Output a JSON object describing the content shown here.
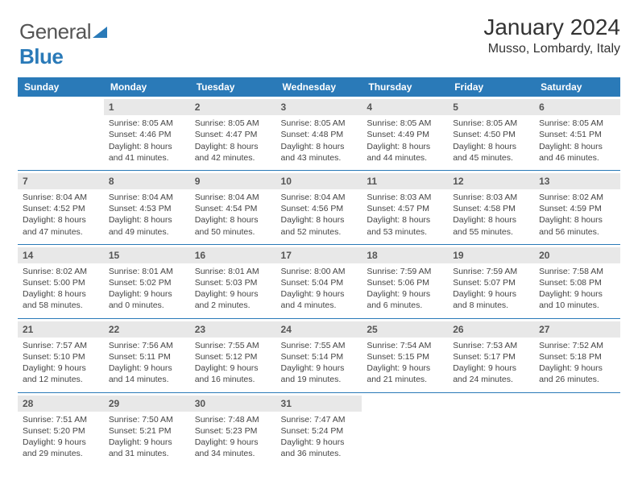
{
  "logo": {
    "word1": "General",
    "word2": "Blue"
  },
  "title": "January 2024",
  "location": "Musso, Lombardy, Italy",
  "colors": {
    "accent": "#2a7ab8",
    "dayHeaderBg": "#e8e8e8",
    "text": "#444"
  },
  "dayHeaders": [
    "Sunday",
    "Monday",
    "Tuesday",
    "Wednesday",
    "Thursday",
    "Friday",
    "Saturday"
  ],
  "weeks": [
    [
      {
        "n": "",
        "empty": true
      },
      {
        "n": "1",
        "sr": "8:05 AM",
        "ss": "4:46 PM",
        "dl": "8 hours and 41 minutes."
      },
      {
        "n": "2",
        "sr": "8:05 AM",
        "ss": "4:47 PM",
        "dl": "8 hours and 42 minutes."
      },
      {
        "n": "3",
        "sr": "8:05 AM",
        "ss": "4:48 PM",
        "dl": "8 hours and 43 minutes."
      },
      {
        "n": "4",
        "sr": "8:05 AM",
        "ss": "4:49 PM",
        "dl": "8 hours and 44 minutes."
      },
      {
        "n": "5",
        "sr": "8:05 AM",
        "ss": "4:50 PM",
        "dl": "8 hours and 45 minutes."
      },
      {
        "n": "6",
        "sr": "8:05 AM",
        "ss": "4:51 PM",
        "dl": "8 hours and 46 minutes."
      }
    ],
    [
      {
        "n": "7",
        "sr": "8:04 AM",
        "ss": "4:52 PM",
        "dl": "8 hours and 47 minutes."
      },
      {
        "n": "8",
        "sr": "8:04 AM",
        "ss": "4:53 PM",
        "dl": "8 hours and 49 minutes."
      },
      {
        "n": "9",
        "sr": "8:04 AM",
        "ss": "4:54 PM",
        "dl": "8 hours and 50 minutes."
      },
      {
        "n": "10",
        "sr": "8:04 AM",
        "ss": "4:56 PM",
        "dl": "8 hours and 52 minutes."
      },
      {
        "n": "11",
        "sr": "8:03 AM",
        "ss": "4:57 PM",
        "dl": "8 hours and 53 minutes."
      },
      {
        "n": "12",
        "sr": "8:03 AM",
        "ss": "4:58 PM",
        "dl": "8 hours and 55 minutes."
      },
      {
        "n": "13",
        "sr": "8:02 AM",
        "ss": "4:59 PM",
        "dl": "8 hours and 56 minutes."
      }
    ],
    [
      {
        "n": "14",
        "sr": "8:02 AM",
        "ss": "5:00 PM",
        "dl": "8 hours and 58 minutes."
      },
      {
        "n": "15",
        "sr": "8:01 AM",
        "ss": "5:02 PM",
        "dl": "9 hours and 0 minutes."
      },
      {
        "n": "16",
        "sr": "8:01 AM",
        "ss": "5:03 PM",
        "dl": "9 hours and 2 minutes."
      },
      {
        "n": "17",
        "sr": "8:00 AM",
        "ss": "5:04 PM",
        "dl": "9 hours and 4 minutes."
      },
      {
        "n": "18",
        "sr": "7:59 AM",
        "ss": "5:06 PM",
        "dl": "9 hours and 6 minutes."
      },
      {
        "n": "19",
        "sr": "7:59 AM",
        "ss": "5:07 PM",
        "dl": "9 hours and 8 minutes."
      },
      {
        "n": "20",
        "sr": "7:58 AM",
        "ss": "5:08 PM",
        "dl": "9 hours and 10 minutes."
      }
    ],
    [
      {
        "n": "21",
        "sr": "7:57 AM",
        "ss": "5:10 PM",
        "dl": "9 hours and 12 minutes."
      },
      {
        "n": "22",
        "sr": "7:56 AM",
        "ss": "5:11 PM",
        "dl": "9 hours and 14 minutes."
      },
      {
        "n": "23",
        "sr": "7:55 AM",
        "ss": "5:12 PM",
        "dl": "9 hours and 16 minutes."
      },
      {
        "n": "24",
        "sr": "7:55 AM",
        "ss": "5:14 PM",
        "dl": "9 hours and 19 minutes."
      },
      {
        "n": "25",
        "sr": "7:54 AM",
        "ss": "5:15 PM",
        "dl": "9 hours and 21 minutes."
      },
      {
        "n": "26",
        "sr": "7:53 AM",
        "ss": "5:17 PM",
        "dl": "9 hours and 24 minutes."
      },
      {
        "n": "27",
        "sr": "7:52 AM",
        "ss": "5:18 PM",
        "dl": "9 hours and 26 minutes."
      }
    ],
    [
      {
        "n": "28",
        "sr": "7:51 AM",
        "ss": "5:20 PM",
        "dl": "9 hours and 29 minutes."
      },
      {
        "n": "29",
        "sr": "7:50 AM",
        "ss": "5:21 PM",
        "dl": "9 hours and 31 minutes."
      },
      {
        "n": "30",
        "sr": "7:48 AM",
        "ss": "5:23 PM",
        "dl": "9 hours and 34 minutes."
      },
      {
        "n": "31",
        "sr": "7:47 AM",
        "ss": "5:24 PM",
        "dl": "9 hours and 36 minutes."
      },
      {
        "n": "",
        "empty": true
      },
      {
        "n": "",
        "empty": true
      },
      {
        "n": "",
        "empty": true
      }
    ]
  ]
}
